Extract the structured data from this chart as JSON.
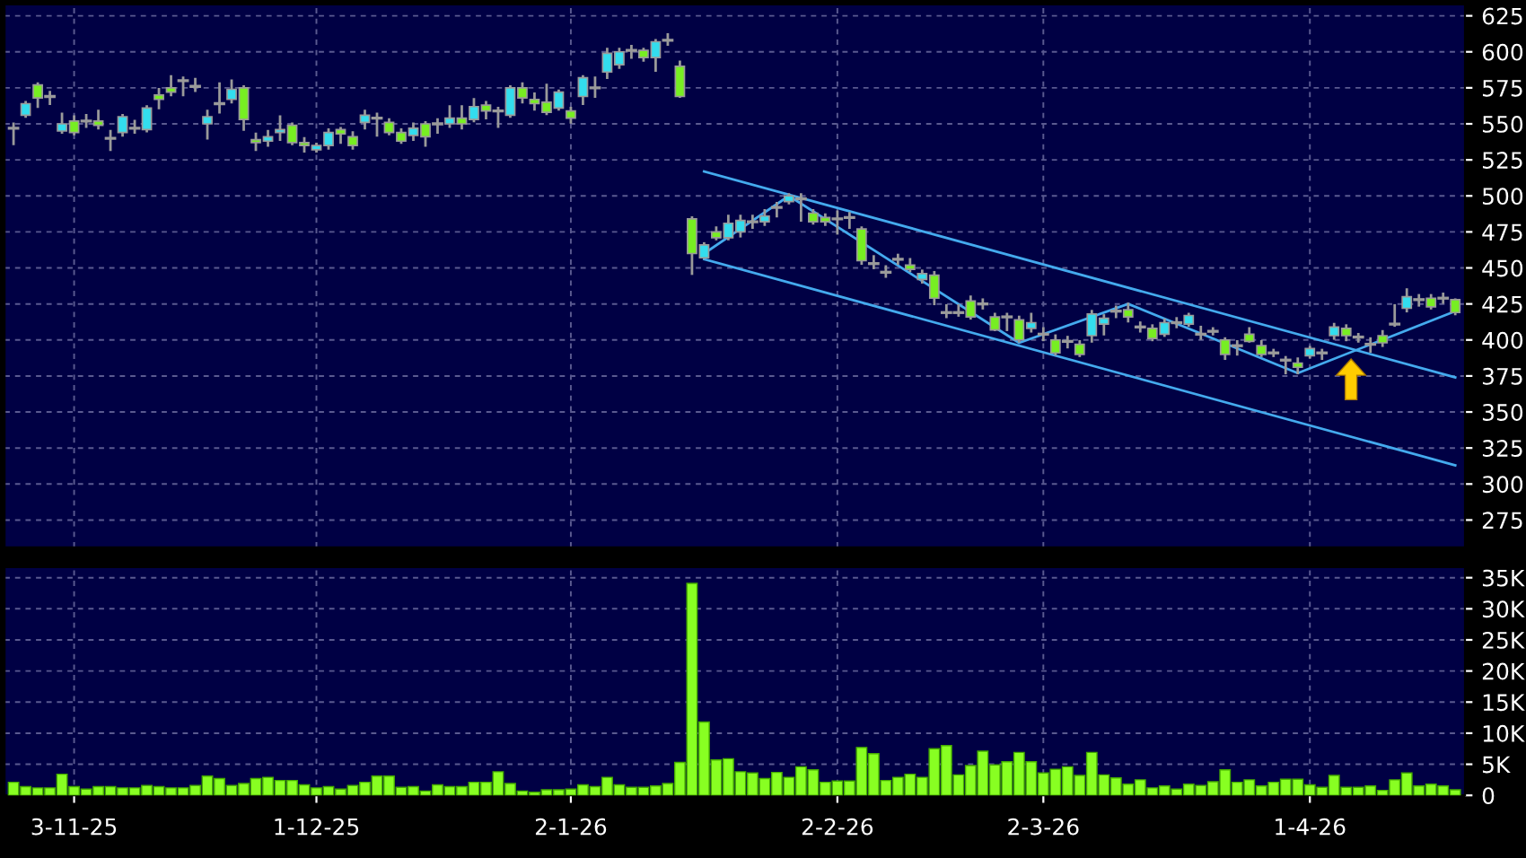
{
  "chart_data": [
    {
      "type": "candlestick",
      "grid": true,
      "categories": [
        null,
        null,
        null,
        null,
        null,
        null,
        null,
        null,
        null,
        null,
        null,
        null,
        null,
        null,
        null,
        null,
        null,
        null,
        null,
        null,
        null,
        null,
        null,
        null,
        null,
        null,
        null,
        null,
        null,
        null,
        null,
        null,
        null,
        null,
        null,
        null,
        null,
        null,
        null,
        null,
        null,
        null,
        null,
        null,
        null,
        null,
        null,
        null,
        null,
        null,
        null,
        null,
        null,
        null,
        null,
        null,
        null,
        null,
        null,
        null,
        null,
        null,
        null,
        null,
        null,
        null,
        null,
        null,
        null,
        null,
        null,
        null,
        null,
        null,
        null,
        null,
        null,
        null,
        null,
        null,
        null,
        null,
        null,
        null,
        null,
        null,
        null,
        null,
        null,
        null,
        null,
        null,
        null,
        null,
        null,
        null,
        null,
        null,
        null,
        null,
        null,
        null,
        null,
        null,
        null,
        null,
        null,
        null,
        null,
        null,
        null,
        null,
        null,
        null,
        null,
        null,
        null,
        null,
        null,
        null
      ],
      "ohlc": [
        [
          547,
          550,
          536,
          547
        ],
        [
          556,
          565,
          555,
          564
        ],
        [
          577,
          578,
          562,
          568
        ],
        [
          569,
          572,
          564,
          569
        ],
        [
          545,
          557,
          544,
          550
        ],
        [
          552,
          555,
          543,
          544
        ],
        [
          552,
          556,
          548,
          552
        ],
        [
          552,
          559,
          547,
          549
        ],
        [
          540,
          545,
          532,
          540
        ],
        [
          544,
          556,
          542,
          555
        ],
        [
          547,
          552,
          544,
          547
        ],
        [
          546,
          562,
          545,
          561
        ],
        [
          570,
          574,
          561,
          567
        ],
        [
          575,
          583,
          570,
          572
        ],
        [
          580,
          582,
          570,
          580
        ],
        [
          576,
          581,
          573,
          576
        ],
        [
          550,
          559,
          540,
          555
        ],
        [
          564,
          578,
          558,
          564
        ],
        [
          567,
          580,
          565,
          574
        ],
        [
          575,
          576,
          546,
          553
        ],
        [
          539,
          543,
          532,
          537
        ],
        [
          538,
          545,
          535,
          541
        ],
        [
          544,
          555,
          539,
          546
        ],
        [
          549,
          550,
          536,
          537
        ],
        [
          537,
          540,
          531,
          535
        ],
        [
          532,
          536,
          531,
          535
        ],
        [
          535,
          546,
          533,
          544
        ],
        [
          546,
          547,
          537,
          543
        ],
        [
          541,
          544,
          533,
          535
        ],
        [
          551,
          559,
          547,
          556
        ],
        [
          554,
          557,
          542,
          554
        ],
        [
          551,
          553,
          543,
          544
        ],
        [
          544,
          546,
          537,
          538
        ],
        [
          542,
          550,
          539,
          547
        ],
        [
          550,
          551,
          535,
          541
        ],
        [
          550,
          553,
          544,
          550
        ],
        [
          550,
          562,
          548,
          554
        ],
        [
          554,
          562,
          547,
          550
        ],
        [
          553,
          567,
          552,
          562
        ],
        [
          563,
          565,
          554,
          559
        ],
        [
          559,
          561,
          548,
          559
        ],
        [
          556,
          576,
          555,
          575
        ],
        [
          575,
          578,
          565,
          568
        ],
        [
          567,
          571,
          560,
          564
        ],
        [
          565,
          577,
          557,
          558
        ],
        [
          561,
          573,
          560,
          572
        ],
        [
          559,
          561,
          551,
          554
        ],
        [
          569,
          583,
          564,
          582
        ],
        [
          575,
          582,
          569,
          575
        ],
        [
          586,
          602,
          582,
          599
        ],
        [
          591,
          602,
          589,
          600
        ],
        [
          601,
          604,
          596,
          601
        ],
        [
          601,
          602,
          594,
          596
        ],
        [
          596,
          608,
          587,
          607
        ],
        [
          608,
          612,
          605,
          608
        ],
        [
          590,
          593,
          569,
          569
        ],
        [
          484,
          485,
          446,
          460
        ],
        [
          457,
          467,
          457,
          466
        ],
        [
          475,
          478,
          470,
          471
        ],
        [
          471,
          486,
          470,
          481
        ],
        [
          475,
          486,
          472,
          483
        ],
        [
          482,
          486,
          478,
          482
        ],
        [
          482,
          490,
          480,
          486
        ],
        [
          492,
          495,
          486,
          492
        ],
        [
          496,
          501,
          495,
          500
        ],
        [
          498,
          501,
          483,
          498
        ],
        [
          488,
          490,
          481,
          482
        ],
        [
          485,
          487,
          480,
          482
        ],
        [
          484,
          489,
          474,
          484
        ],
        [
          485,
          488,
          478,
          485
        ],
        [
          477,
          478,
          453,
          455
        ],
        [
          453,
          458,
          450,
          453
        ],
        [
          447,
          451,
          444,
          447
        ],
        [
          456,
          459,
          453,
          456
        ],
        [
          452,
          456,
          448,
          449
        ],
        [
          442,
          448,
          440,
          446
        ],
        [
          445,
          447,
          425,
          429
        ],
        [
          419,
          424,
          416,
          419
        ],
        [
          419,
          424,
          417,
          419
        ],
        [
          427,
          430,
          415,
          416
        ],
        [
          425,
          428,
          422,
          425
        ],
        [
          416,
          418,
          407,
          407
        ],
        [
          416,
          418,
          407,
          416
        ],
        [
          414,
          416,
          399,
          400
        ],
        [
          408,
          418,
          406,
          412
        ],
        [
          404,
          408,
          400,
          404
        ],
        [
          400,
          403,
          390,
          391
        ],
        [
          399,
          402,
          395,
          399
        ],
        [
          397,
          399,
          389,
          390
        ],
        [
          403,
          420,
          399,
          418
        ],
        [
          411,
          417,
          404,
          415
        ],
        [
          420,
          423,
          416,
          420
        ],
        [
          421,
          425,
          413,
          416
        ],
        [
          409,
          412,
          406,
          409
        ],
        [
          408,
          410,
          400,
          401
        ],
        [
          404,
          414,
          403,
          412
        ],
        [
          412,
          415,
          409,
          412
        ],
        [
          411,
          418,
          410,
          417
        ],
        [
          404,
          409,
          401,
          404
        ],
        [
          406,
          408,
          404,
          406
        ],
        [
          400,
          401,
          387,
          390
        ],
        [
          396,
          399,
          390,
          396
        ],
        [
          404,
          408,
          399,
          399
        ],
        [
          396,
          399,
          389,
          390
        ],
        [
          391,
          393,
          389,
          391
        ],
        [
          386,
          388,
          377,
          386
        ],
        [
          384,
          387,
          377,
          381
        ],
        [
          389,
          395,
          388,
          394
        ],
        [
          391,
          393,
          387,
          391
        ],
        [
          403,
          411,
          401,
          409
        ],
        [
          408,
          410,
          400,
          403
        ],
        [
          402,
          404,
          399,
          402
        ],
        [
          397,
          401,
          392,
          397
        ],
        [
          403,
          406,
          396,
          398
        ],
        [
          411,
          424,
          410,
          411
        ],
        [
          422,
          435,
          420,
          430
        ],
        [
          428,
          431,
          424,
          428
        ],
        [
          429,
          431,
          422,
          423
        ],
        [
          429,
          432,
          426,
          429
        ],
        [
          428,
          428,
          418,
          419
        ]
      ],
      "colors": [
        "#9a9a9a",
        "#33ddee",
        "#77ee22",
        "#9a9a9a",
        "#33ddee",
        "#77ee22",
        "#9a9a9a",
        "#77ee22",
        "#9a9a9a",
        "#33ddee",
        "#9a9a9a",
        "#33ddee",
        "#77ee22",
        "#77ee22",
        "#9a9a9a",
        "#9a9a9a",
        "#33ddee",
        "#9a9a9a",
        "#33ddee",
        "#77ee22",
        "#77ee22",
        "#33ddee",
        "#33ddee",
        "#77ee22",
        "#77ee22",
        "#33ddee",
        "#33ddee",
        "#77ee22",
        "#77ee22",
        "#33ddee",
        "#9a9a9a",
        "#77ee22",
        "#77ee22",
        "#33ddee",
        "#77ee22",
        "#9a9a9a",
        "#33ddee",
        "#77ee22",
        "#33ddee",
        "#77ee22",
        "#9a9a9a",
        "#33ddee",
        "#77ee22",
        "#77ee22",
        "#77ee22",
        "#33ddee",
        "#77ee22",
        "#33ddee",
        "#9a9a9a",
        "#33ddee",
        "#33ddee",
        "#9a9a9a",
        "#77ee22",
        "#33ddee",
        "#9a9a9a",
        "#77ee22",
        "#77ee22",
        "#33ddee",
        "#77ee22",
        "#33ddee",
        "#33ddee",
        "#9a9a9a",
        "#33ddee",
        "#9a9a9a",
        "#33ddee",
        "#9a9a9a",
        "#77ee22",
        "#77ee22",
        "#9a9a9a",
        "#9a9a9a",
        "#77ee22",
        "#9a9a9a",
        "#9a9a9a",
        "#9a9a9a",
        "#77ee22",
        "#33ddee",
        "#77ee22",
        "#9a9a9a",
        "#9a9a9a",
        "#77ee22",
        "#9a9a9a",
        "#77ee22",
        "#9a9a9a",
        "#77ee22",
        "#33ddee",
        "#9a9a9a",
        "#77ee22",
        "#9a9a9a",
        "#77ee22",
        "#33ddee",
        "#33ddee",
        "#9a9a9a",
        "#77ee22",
        "#9a9a9a",
        "#77ee22",
        "#33ddee",
        "#9a9a9a",
        "#33ddee",
        "#9a9a9a",
        "#9a9a9a",
        "#77ee22",
        "#9a9a9a",
        "#77ee22",
        "#77ee22",
        "#9a9a9a",
        "#9a9a9a",
        "#77ee22",
        "#33ddee",
        "#9a9a9a",
        "#33ddee",
        "#77ee22",
        "#9a9a9a",
        "#9a9a9a",
        "#77ee22",
        "#9a9a9a",
        "#33ddee",
        "#9a9a9a",
        "#77ee22",
        "#9a9a9a",
        "#77ee22"
      ],
      "series": [
        {
          "type": "line",
          "color": "#44aaee",
          "values": [
            null,
            null,
            null,
            null,
            null,
            null,
            null,
            null,
            null,
            null,
            null,
            null,
            null,
            null,
            null,
            null,
            null,
            null,
            null,
            null,
            null,
            null,
            null,
            null,
            null,
            null,
            null,
            null,
            null,
            null,
            null,
            null,
            null,
            null,
            null,
            null,
            null,
            null,
            null,
            null,
            null,
            null,
            null,
            null,
            null,
            null,
            null,
            null,
            null,
            null,
            null,
            null,
            null,
            null,
            null,
            null,
            null,
            517,
            null,
            null,
            null,
            null,
            null,
            null,
            null,
            null,
            null,
            null,
            null,
            null,
            null,
            null,
            null,
            null,
            null,
            null,
            null,
            null,
            null,
            null,
            null,
            null,
            null,
            null,
            null,
            null,
            null,
            null,
            null,
            null,
            null,
            null,
            null,
            null,
            null,
            null,
            null,
            null,
            null,
            null,
            null,
            null,
            null,
            null,
            null,
            null,
            null,
            null,
            null,
            null,
            null,
            null,
            null,
            null,
            null,
            null,
            null,
            null,
            null,
            374
          ]
        },
        {
          "type": "line",
          "color": "#44aaee",
          "values": [
            null,
            null,
            null,
            null,
            null,
            null,
            null,
            null,
            null,
            null,
            null,
            null,
            null,
            null,
            null,
            null,
            null,
            null,
            null,
            null,
            null,
            null,
            null,
            null,
            null,
            null,
            null,
            null,
            null,
            null,
            null,
            null,
            null,
            null,
            null,
            null,
            null,
            null,
            null,
            null,
            null,
            null,
            null,
            null,
            null,
            null,
            null,
            null,
            null,
            null,
            null,
            null,
            null,
            null,
            null,
            null,
            null,
            456,
            null,
            null,
            null,
            null,
            null,
            null,
            null,
            null,
            null,
            null,
            null,
            null,
            null,
            null,
            null,
            null,
            null,
            null,
            null,
            null,
            null,
            null,
            null,
            null,
            null,
            null,
            null,
            null,
            null,
            null,
            null,
            null,
            null,
            null,
            null,
            null,
            null,
            null,
            null,
            null,
            null,
            null,
            null,
            null,
            null,
            null,
            null,
            null,
            null,
            null,
            null,
            null,
            null,
            null,
            null,
            null,
            null,
            null,
            null,
            null,
            null,
            313
          ]
        },
        {
          "type": "line",
          "color": "#44aaee",
          "values": [
            null,
            null,
            null,
            null,
            null,
            null,
            null,
            null,
            null,
            null,
            null,
            null,
            null,
            null,
            null,
            null,
            null,
            null,
            null,
            null,
            null,
            null,
            null,
            null,
            null,
            null,
            null,
            null,
            null,
            null,
            null,
            null,
            null,
            null,
            null,
            null,
            null,
            null,
            null,
            null,
            null,
            null,
            null,
            null,
            null,
            null,
            null,
            null,
            null,
            null,
            null,
            null,
            null,
            null,
            null,
            null,
            null,
            460,
            null,
            null,
            null,
            null,
            null,
            null,
            500,
            null,
            null,
            null,
            null,
            null,
            null,
            null,
            null,
            null,
            null,
            null,
            null,
            null,
            null,
            null,
            null,
            null,
            null,
            398,
            null,
            null,
            null,
            null,
            null,
            null,
            null,
            null,
            425,
            null,
            null,
            null,
            null,
            null,
            null,
            null,
            null,
            null,
            null,
            null,
            null,
            null,
            377,
            null,
            null,
            null,
            null,
            null,
            null,
            null,
            null,
            null,
            null,
            null,
            null,
            420
          ]
        }
      ],
      "ylim": [
        256,
        633
      ],
      "yticks": [
        275,
        300,
        325,
        350,
        375,
        400,
        425,
        450,
        475,
        500,
        525,
        550,
        575,
        600,
        625
      ]
    },
    {
      "type": "bar",
      "grid": true,
      "color": "#88ff22",
      "categories": [
        null,
        null,
        null,
        null,
        null,
        "3-11-25",
        null,
        null,
        null,
        null,
        null,
        null,
        null,
        null,
        null,
        null,
        null,
        null,
        null,
        null,
        null,
        null,
        null,
        null,
        null,
        "1-12-25",
        null,
        null,
        null,
        null,
        null,
        null,
        null,
        null,
        null,
        null,
        null,
        null,
        null,
        null,
        null,
        null,
        null,
        null,
        null,
        null,
        "2-1-26",
        null,
        null,
        null,
        null,
        null,
        null,
        null,
        null,
        null,
        null,
        null,
        null,
        null,
        null,
        null,
        null,
        null,
        null,
        null,
        null,
        null,
        "2-2-26",
        null,
        null,
        null,
        null,
        null,
        null,
        null,
        null,
        null,
        null,
        null,
        null,
        null,
        null,
        null,
        null,
        "2-3-26",
        null,
        null,
        null,
        null,
        null,
        null,
        null,
        null,
        null,
        null,
        null,
        null,
        null,
        null,
        null,
        null,
        null,
        null,
        null,
        null,
        null,
        "1-4-26",
        null,
        null,
        null,
        null,
        null,
        null,
        null,
        null,
        null,
        null,
        null,
        null
      ],
      "values": [
        2100,
        1400,
        1200,
        1200,
        3400,
        1400,
        1000,
        1400,
        1400,
        1200,
        1200,
        1600,
        1400,
        1200,
        1200,
        1600,
        3100,
        2700,
        1600,
        1900,
        2700,
        2900,
        2400,
        2400,
        1700,
        1200,
        1400,
        1000,
        1600,
        2100,
        3100,
        3100,
        1300,
        1400,
        700,
        1700,
        1400,
        1400,
        2100,
        2100,
        3800,
        1900,
        700,
        500,
        900,
        900,
        1000,
        1700,
        1400,
        2900,
        1700,
        1300,
        1300,
        1500,
        1900,
        5300,
        34100,
        11800,
        5700,
        5900,
        3800,
        3600,
        2700,
        3700,
        2900,
        4600,
        4100,
        2100,
        2300,
        2300,
        7700,
        6700,
        2400,
        2900,
        3400,
        2900,
        7500,
        8000,
        3300,
        4800,
        7100,
        4900,
        5400,
        6900,
        5400,
        3600,
        4200,
        4600,
        3200,
        6900,
        3300,
        2800,
        1800,
        2500,
        1200,
        1500,
        1000,
        1800,
        1600,
        2200,
        4100,
        2100,
        2500,
        1500,
        2100,
        2600,
        2600,
        1700,
        1300,
        3200,
        1300,
        1300,
        1500,
        800,
        2500,
        3600,
        1500,
        1800,
        1500,
        900
      ],
      "ylim": [
        0,
        36700
      ],
      "yticks": [
        0,
        {
          "value": 5000,
          "label": "5K"
        },
        {
          "value": 10000,
          "label": "10K"
        },
        {
          "value": 15000,
          "label": "15K"
        },
        {
          "value": 20000,
          "label": "20K"
        },
        {
          "value": 25000,
          "label": "25K"
        },
        {
          "value": 30000,
          "label": "30K"
        },
        {
          "value": 35000,
          "label": "35K"
        }
      ]
    }
  ]
}
